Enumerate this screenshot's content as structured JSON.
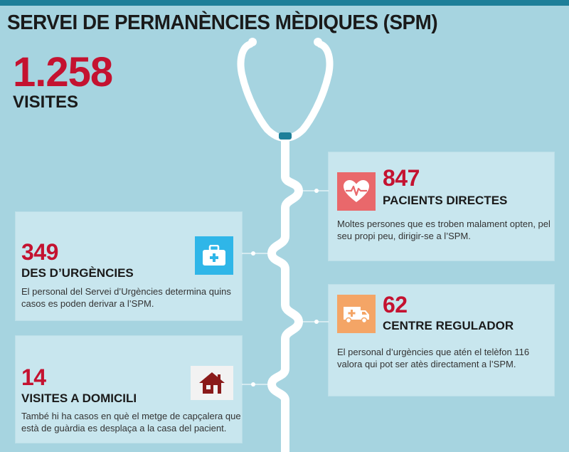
{
  "header": {
    "title": "SERVEI DE PERMANÈNCIES MÈDIQUES (SPM)"
  },
  "summary": {
    "total": "1.258",
    "total_label": "VISITES"
  },
  "cards": {
    "pacients": {
      "number": "847",
      "label": "PACIENTS DIRECTES",
      "description": "Moltes persones que es troben malament opten, pel seu propi peu, dirigir-se a l’SPM.",
      "icon": "heart-pulse-icon"
    },
    "urgencies": {
      "number": "349",
      "label": "DES D’URGÈNCIES",
      "description": "El personal del Servei d’Urgències determina quins casos es poden derivar a l’SPM.",
      "icon": "medical-kit-icon"
    },
    "regulador": {
      "number": "62",
      "label": "CENTRE REGULADOR",
      "description": "El personal d’urgències que atén el telèfon 116 valora qui pot ser atès directament a l’SPM.",
      "icon": "ambulance-icon"
    },
    "domicili": {
      "number": "14",
      "label": "VISITES A DOMICILI",
      "description": "També hi ha casos en què el metge de capçalera que està de guàrdia es desplaça a la casa del pacient.",
      "icon": "house-icon"
    }
  },
  "colors": {
    "background": "#a6d4e0",
    "accent_red": "#c41230",
    "top_bar": "#1d7f99",
    "card_background": "#c8e6ee",
    "heart_icon_bg": "#e9686b",
    "kit_icon_bg": "#2fb6e8",
    "ambulance_icon_bg": "#f4a566",
    "house_icon_color": "#8a1a1a"
  }
}
